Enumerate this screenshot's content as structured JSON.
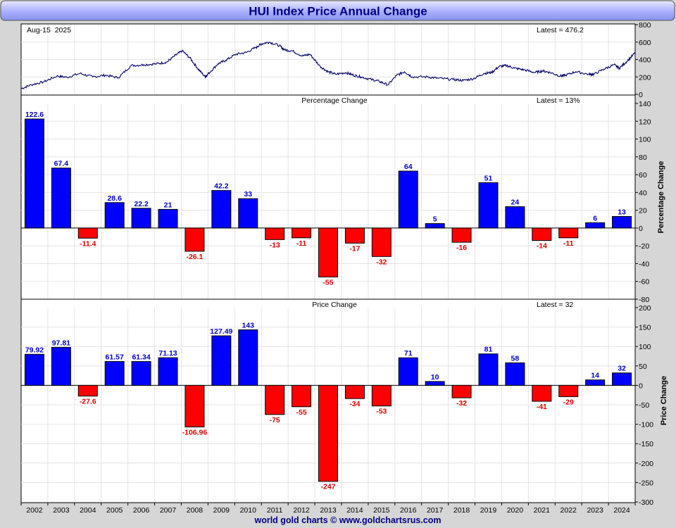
{
  "title": "HUI Index Price Annual Change",
  "footer": "world gold charts © www.goldchartsrus.com",
  "colors": {
    "up": "#0000ff",
    "down": "#ff0000",
    "up_label": "#0000cc",
    "down_label": "#dd0000",
    "price_line": "#000066",
    "title_text": "#000080"
  },
  "chart_data": [
    {
      "type": "line",
      "panel": "price",
      "date_label": "Aug-15  2025",
      "latest_label": "Latest = 476.2",
      "latest": 476.2,
      "x_range": [
        2001.6,
        2025.62
      ],
      "ylim": [
        0,
        800
      ],
      "yticks": [
        "800",
        "600",
        "400",
        "200",
        "0"
      ],
      "series": [
        {
          "x": [
            2001.6,
            2002.0,
            2002.5,
            2003.0,
            2003.4,
            2003.9,
            2004.4,
            2004.9,
            2005.4,
            2005.9,
            2006.4,
            2006.9,
            2007.3,
            2007.6,
            2007.9,
            2008.2,
            2008.5,
            2008.8,
            2008.9,
            2009.3,
            2009.6,
            2010.0,
            2010.4,
            2010.8,
            2011.0,
            2011.3,
            2011.7,
            2011.9,
            2012.2,
            2012.6,
            2012.9,
            2013.3,
            2013.6,
            2013.9,
            2014.3,
            2014.6,
            2014.9,
            2015.3,
            2015.6,
            2015.95,
            2016.3,
            2016.6,
            2016.9,
            2017.5,
            2017.9,
            2018.5,
            2018.9,
            2019.3,
            2019.7,
            2020.0,
            2020.3,
            2020.6,
            2020.9,
            2021.3,
            2021.7,
            2022.0,
            2022.3,
            2022.7,
            2022.9,
            2023.3,
            2023.8,
            2024.0,
            2024.4,
            2024.8,
            2025.0,
            2025.3,
            2025.62
          ],
          "y": [
            65,
            110,
            145,
            210,
            195,
            240,
            200,
            220,
            190,
            330,
            340,
            350,
            370,
            440,
            500,
            420,
            300,
            200,
            230,
            350,
            390,
            460,
            480,
            540,
            580,
            600,
            560,
            510,
            500,
            440,
            460,
            320,
            260,
            230,
            250,
            220,
            200,
            170,
            150,
            110,
            220,
            260,
            200,
            200,
            185,
            170,
            160,
            180,
            240,
            250,
            320,
            330,
            300,
            280,
            250,
            270,
            250,
            210,
            220,
            260,
            230,
            230,
            290,
            340,
            300,
            380,
            476.2
          ]
        }
      ]
    },
    {
      "type": "bar",
      "panel": "percentage",
      "title": "Percentage Change",
      "latest_label": "Latest = 13%",
      "ylabel": "Percentage Change",
      "ylim": [
        -80,
        140
      ],
      "yticks": [
        "140",
        "120",
        "100",
        "80",
        "60",
        "40",
        "20",
        "0",
        "-20",
        "-40",
        "-60",
        "-80"
      ],
      "categories": [
        "2002",
        "2003",
        "2004",
        "2005",
        "2006",
        "2007",
        "2008",
        "2009",
        "2010",
        "2011",
        "2012",
        "2013",
        "2014",
        "2015",
        "2016",
        "2017",
        "2018",
        "2019",
        "2020",
        "2021",
        "2022",
        "2023",
        "2024"
      ],
      "values": [
        122.6,
        67.4,
        -11.4,
        28.6,
        22.2,
        21,
        -26.1,
        42.2,
        33,
        -13,
        -11,
        -55,
        -17,
        -32,
        64,
        5,
        -16,
        51,
        24,
        -14,
        -11,
        6,
        13
      ],
      "labels": [
        "122.6",
        "67.4",
        "-11.4",
        "28.6",
        "22.2",
        "21",
        "-26.1",
        "42.2",
        "33",
        "-13",
        "-11",
        "-55",
        "-17",
        "-32",
        "64",
        "5",
        "-16",
        "51",
        "24",
        "-14",
        "-11",
        "6",
        "13"
      ]
    },
    {
      "type": "bar",
      "panel": "price-change",
      "title": "Price Change",
      "latest_label": "Latest = 32",
      "ylabel": "Price Change",
      "ylim": [
        -300,
        200
      ],
      "yticks": [
        "200",
        "150",
        "100",
        "50",
        "0",
        "-50",
        "-100",
        "-150",
        "-200",
        "-250",
        "-300"
      ],
      "categories": [
        "2002",
        "2003",
        "2004",
        "2005",
        "2006",
        "2007",
        "2008",
        "2009",
        "2010",
        "2011",
        "2012",
        "2013",
        "2014",
        "2015",
        "2016",
        "2017",
        "2018",
        "2019",
        "2020",
        "2021",
        "2022",
        "2023",
        "2024"
      ],
      "values": [
        79.92,
        97.81,
        -27.6,
        61.57,
        61.34,
        71.13,
        -106.96,
        127.49,
        143,
        -75,
        -55,
        -247,
        -34,
        -53,
        71,
        10,
        -32,
        81,
        58,
        -41,
        -29,
        14,
        32
      ],
      "labels": [
        "79.92",
        "97.81",
        "-27.6",
        "61.57",
        "61.34",
        "71.13",
        "-106.96",
        "127.49",
        "143",
        "-75",
        "-55",
        "-247",
        "-34",
        "-53",
        "71",
        "10",
        "-32",
        "81",
        "58",
        "-41",
        "-29",
        "14",
        "32"
      ]
    }
  ]
}
